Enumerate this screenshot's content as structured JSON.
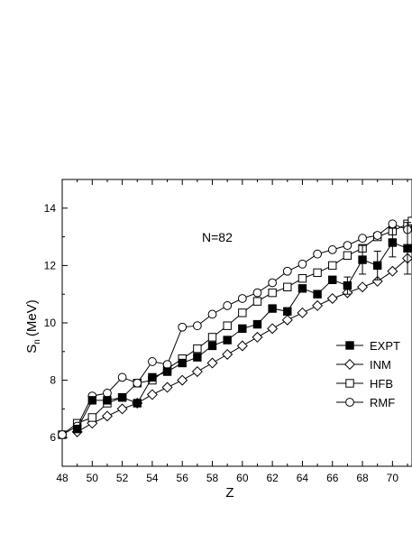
{
  "chart_data": {
    "type": "line",
    "annotation": "N=82",
    "xlabel": "Z",
    "ylabel_main": "S",
    "ylabel_sub": "n",
    "ylabel_unit": "(MeV)",
    "xlim": [
      48,
      71.3
    ],
    "ylim": [
      5,
      15
    ],
    "x_ticks": [
      48,
      50,
      52,
      54,
      56,
      58,
      60,
      62,
      64,
      66,
      68,
      70
    ],
    "x_tick_labels": [
      "48",
      "50",
      "52",
      "54",
      "56",
      "58",
      "60",
      "62",
      "64",
      "66",
      "68",
      "70"
    ],
    "y_ticks": [
      6,
      8,
      10,
      12,
      14
    ],
    "y_tick_labels": [
      "6",
      "8",
      "10",
      "12",
      "14"
    ],
    "legend_position": "right",
    "series": [
      {
        "name": "EXPT",
        "marker": "filled-square",
        "x": [
          49,
          50,
          51,
          52,
          53,
          54,
          55,
          56,
          57,
          58,
          59,
          60,
          61,
          62,
          63,
          64,
          65,
          66,
          67,
          68,
          69,
          70,
          71
        ],
        "y": [
          6.3,
          7.3,
          7.3,
          7.4,
          7.2,
          8.1,
          8.3,
          8.6,
          8.8,
          9.2,
          9.4,
          9.8,
          9.95,
          10.5,
          10.4,
          11.2,
          11.0,
          11.5,
          11.3,
          12.2,
          12.0,
          12.8,
          12.6
        ],
        "error": [
          0,
          0,
          0,
          0,
          0,
          0,
          0,
          0,
          0,
          0,
          0,
          0,
          0,
          0,
          0,
          0,
          0,
          0,
          0.3,
          0.5,
          0.5,
          0.5,
          0.9
        ]
      },
      {
        "name": "INM",
        "marker": "open-diamond",
        "x": [
          49,
          50,
          51,
          52,
          53,
          54,
          55,
          56,
          57,
          58,
          59,
          60,
          61,
          62,
          63,
          64,
          65,
          66,
          67,
          68,
          69,
          70,
          71
        ],
        "y": [
          6.2,
          6.5,
          6.75,
          7.0,
          7.2,
          7.5,
          7.75,
          8.0,
          8.3,
          8.6,
          8.9,
          9.2,
          9.5,
          9.8,
          10.1,
          10.35,
          10.6,
          10.85,
          11.05,
          11.25,
          11.45,
          11.8,
          12.25
        ]
      },
      {
        "name": "HFB",
        "marker": "open-square",
        "x": [
          48,
          49,
          50,
          51,
          52,
          53,
          54,
          55,
          56,
          57,
          58,
          59,
          60,
          61,
          62,
          63,
          64,
          65,
          66,
          67,
          68,
          69,
          70,
          71,
          71.3
        ],
        "y": [
          6.1,
          6.5,
          6.7,
          7.2,
          7.4,
          7.9,
          8.0,
          8.4,
          8.75,
          9.1,
          9.5,
          9.9,
          10.35,
          10.75,
          11.05,
          11.25,
          11.55,
          11.75,
          12.0,
          12.35,
          12.6,
          13.0,
          13.2,
          13.45,
          13.55
        ]
      },
      {
        "name": "RMF",
        "marker": "open-circle",
        "x": [
          48,
          49,
          50,
          51,
          52,
          53,
          54,
          55,
          56,
          57,
          58,
          59,
          60,
          61,
          62,
          63,
          64,
          65,
          66,
          67,
          68,
          69,
          70,
          71
        ],
        "y": [
          6.1,
          6.4,
          7.45,
          7.55,
          8.1,
          7.9,
          8.65,
          8.55,
          9.85,
          9.9,
          10.3,
          10.6,
          10.85,
          11.05,
          11.4,
          11.8,
          12.05,
          12.4,
          12.55,
          12.7,
          12.95,
          13.05,
          13.45,
          13.25
        ]
      }
    ]
  }
}
